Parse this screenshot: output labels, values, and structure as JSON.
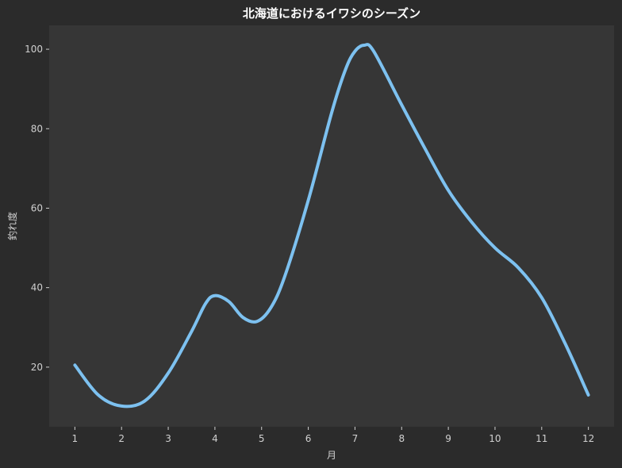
{
  "chart_data": {
    "type": "line",
    "title": "北海道におけるイワシのシーズン",
    "xlabel": "月",
    "ylabel": "釣れ度",
    "x": [
      1,
      2,
      3,
      4,
      5,
      6,
      7,
      8,
      9,
      10,
      11,
      12
    ],
    "xlim": [
      0.45,
      12.55
    ],
    "ylim": [
      5,
      106
    ],
    "yticks": [
      20,
      40,
      60,
      80,
      100
    ],
    "grid": false,
    "series": [
      {
        "color": "#7dc1f0",
        "points": [
          [
            1.0,
            20.5
          ],
          [
            1.5,
            13.0
          ],
          [
            2.0,
            10.2
          ],
          [
            2.5,
            11.5
          ],
          [
            3.0,
            18.5
          ],
          [
            3.5,
            29.0
          ],
          [
            3.8,
            36.0
          ],
          [
            4.0,
            38.0
          ],
          [
            4.3,
            36.5
          ],
          [
            4.6,
            32.5
          ],
          [
            4.9,
            31.5
          ],
          [
            5.2,
            35.0
          ],
          [
            5.5,
            43.0
          ],
          [
            6.0,
            62.0
          ],
          [
            6.5,
            84.0
          ],
          [
            6.8,
            95.0
          ],
          [
            7.0,
            99.5
          ],
          [
            7.2,
            101.0
          ],
          [
            7.4,
            99.5
          ],
          [
            8.0,
            86.0
          ],
          [
            8.5,
            75.0
          ],
          [
            9.0,
            64.5
          ],
          [
            9.5,
            56.5
          ],
          [
            10.0,
            50.0
          ],
          [
            10.5,
            45.0
          ],
          [
            11.0,
            37.5
          ],
          [
            11.5,
            26.0
          ],
          [
            12.0,
            13.0
          ]
        ]
      }
    ]
  }
}
